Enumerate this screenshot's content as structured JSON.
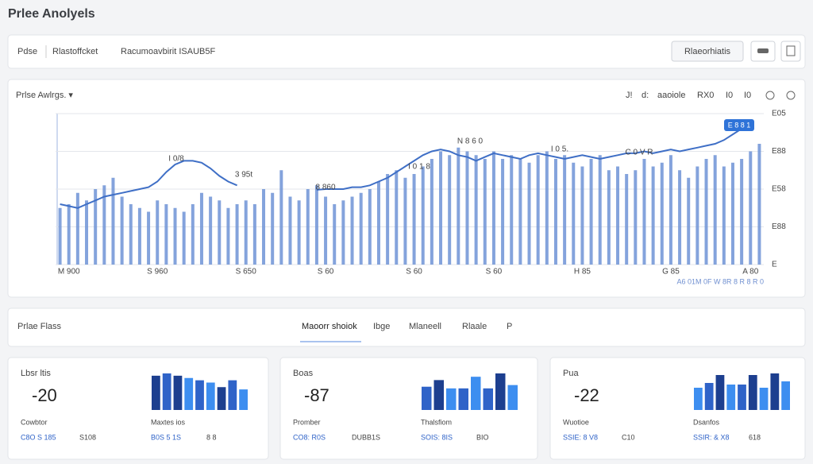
{
  "header": {
    "title": "Prlee Anolyels"
  },
  "topbar": {
    "items": [
      "Pdse",
      "Rlastoffcket",
      "Racumoavbirit ISAUB5F"
    ],
    "button": "Rlaeorhiatis"
  },
  "chart_panel": {
    "title": "Prlse Awlrgs. ▾",
    "toolbar": [
      "J!",
      "d:",
      "aaoiole",
      "RX0",
      "I0",
      "I0"
    ],
    "annotations": [
      "I 0/8",
      "3 95t",
      "8 860",
      "I 0 1 8",
      "N 8 6 0",
      "I 0 5.",
      "C 0 V R",
      "E 8 8 1"
    ],
    "footnote": "A6 01M 0F W 8R 8 R 8 R 0",
    "chart_data": {
      "type": "bar",
      "categories": [
        null,
        "M 900",
        null,
        null,
        null,
        null,
        null,
        null,
        null,
        null,
        null,
        "S 960",
        null,
        null,
        null,
        null,
        null,
        null,
        null,
        null,
        null,
        "S 650",
        null,
        null,
        null,
        null,
        null,
        null,
        null,
        null,
        "S 60",
        null,
        null,
        null,
        null,
        null,
        null,
        null,
        null,
        null,
        "S 60",
        null,
        null,
        null,
        null,
        null,
        null,
        null,
        null,
        "S 60",
        null,
        null,
        null,
        null,
        null,
        null,
        null,
        null,
        null,
        "H 85",
        null,
        null,
        null,
        null,
        null,
        null,
        null,
        null,
        null,
        "G 85",
        null,
        null,
        null,
        null,
        null,
        null,
        null,
        null,
        "A 80",
        null
      ],
      "series": [
        {
          "type": "bar",
          "color": "#6f93d6",
          "values": [
            1.5,
            1.6,
            1.9,
            1.7,
            2.0,
            2.1,
            2.3,
            1.8,
            1.6,
            1.5,
            1.4,
            1.7,
            1.6,
            1.5,
            1.4,
            1.6,
            1.9,
            1.8,
            1.7,
            1.5,
            1.6,
            1.7,
            1.6,
            2.0,
            1.9,
            2.5,
            1.8,
            1.7,
            2.0,
            2.1,
            1.8,
            1.6,
            1.7,
            1.8,
            1.9,
            2.0,
            2.2,
            2.4,
            2.5,
            2.3,
            2.4,
            2.6,
            2.8,
            3.0,
            2.9,
            3.1,
            3.0,
            2.9,
            2.8,
            3.0,
            2.8,
            2.9,
            2.8,
            2.7,
            2.9,
            3.0,
            2.8,
            2.9,
            2.7,
            2.6,
            2.8,
            2.9,
            2.5,
            2.6,
            2.4,
            2.5,
            2.8,
            2.6,
            2.7,
            2.9,
            2.5,
            2.3,
            2.6,
            2.8,
            2.9,
            2.6,
            2.7,
            2.8,
            3.0,
            3.2
          ]
        },
        {
          "type": "line",
          "color": "#3f6fc6",
          "values": [
            1.6,
            1.55,
            1.5,
            1.6,
            1.7,
            1.8,
            1.85,
            1.9,
            1.95,
            2.0,
            2.05,
            2.2,
            2.45,
            2.65,
            2.75,
            2.75,
            2.7,
            2.55,
            2.35,
            2.2,
            2.1,
            null,
            null,
            null,
            null,
            null,
            null,
            null,
            null,
            1.98,
            2.0,
            2.0,
            2.0,
            2.05,
            2.05,
            2.1,
            2.2,
            2.3,
            2.45,
            2.6,
            2.75,
            2.9,
            3.0,
            3.05,
            3.0,
            2.9,
            2.85,
            2.75,
            2.85,
            2.95,
            2.9,
            2.85,
            2.8,
            2.9,
            2.95,
            2.9,
            2.85,
            2.8,
            2.85,
            2.9,
            2.85,
            2.8,
            2.85,
            2.9,
            2.95,
            2.95,
            3.0,
            2.95,
            3.0,
            3.05,
            3.0,
            3.05,
            3.1,
            3.15,
            3.2,
            3.3,
            3.45,
            3.6,
            3.7,
            null
          ]
        }
      ],
      "ylim": [
        0,
        4
      ],
      "yticks": [
        {
          "value": 0,
          "label": "E"
        },
        {
          "value": 1,
          "label": "E88"
        },
        {
          "value": 2,
          "label": "E58"
        },
        {
          "value": 3,
          "label": "E88"
        },
        {
          "value": 4,
          "label": "E05"
        }
      ],
      "grid": true
    }
  },
  "tabs": {
    "title": "Prlae Flass",
    "items": [
      "Maoorr shoiok",
      "Ibge",
      "Mlaneell",
      "Rlaale",
      "P"
    ]
  },
  "cards": [
    {
      "title": "Lbsr ltis",
      "value": -20,
      "labels": [
        "Cowbtor",
        "Maxtes ios"
      ],
      "links": [
        "C8O S 185",
        "S108",
        "B0S 5 1S",
        "8 8"
      ],
      "bars": [
        30,
        32,
        30,
        28,
        26,
        24,
        20,
        26,
        18
      ],
      "colors": [
        "#1d3f8f",
        "#2f63c8",
        "#1d3f8f",
        "#3d8ef0",
        "#2f63c8",
        "#3d8ef0",
        "#1d3f8f",
        "#2f63c8",
        "#3d8ef0"
      ]
    },
    {
      "title": "Boas",
      "value": -87,
      "labels": [
        "Promber",
        "Thalsfiom"
      ],
      "links": [
        "CO8: R0S",
        "DUBB1S",
        "SOIS: 8IS",
        "BIO"
      ],
      "bars": [
        28,
        36,
        26,
        26,
        40,
        26,
        44,
        30
      ],
      "colors": [
        "#2f63c8",
        "#1d3f8f",
        "#3d8ef0",
        "#2f63c8",
        "#3d8ef0",
        "#2f63c8",
        "#1d3f8f",
        "#3d8ef0"
      ]
    },
    {
      "title": "Pua",
      "value": -22,
      "labels": [
        "Wuotioe",
        "Dsanfos"
      ],
      "links": [
        "SSIE: 8 V8",
        "C10",
        "SSIR: & X8",
        "618"
      ],
      "bars": [
        28,
        34,
        44,
        32,
        32,
        44,
        28,
        46,
        36
      ],
      "colors": [
        "#3d8ef0",
        "#2f63c8",
        "#1d3f8f",
        "#3d8ef0",
        "#2f63c8",
        "#1d3f8f",
        "#3d8ef0",
        "#1d3f8f",
        "#3d8ef0"
      ]
    }
  ]
}
